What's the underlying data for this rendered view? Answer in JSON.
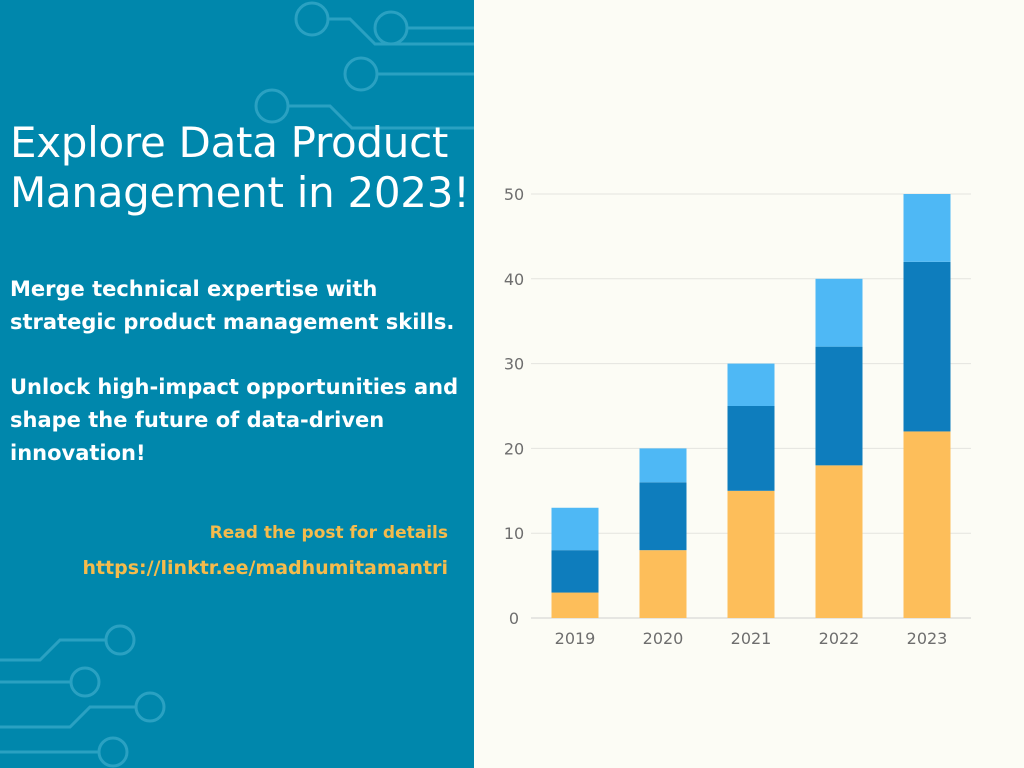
{
  "poster": {
    "headline_line1": "Explore Data Product",
    "headline_line2": "Management in 2023!",
    "para1_line1": "Merge technical expertise with",
    "para1_line2": "strategic product management skills.",
    "para2_line1": "Unlock high-impact opportunities and",
    "para2_line2": "shape the future of data-driven",
    "para2_line3": "innovation!",
    "cta": "Read the post for details",
    "link": "https://linktr.ee/madhumitamantri"
  },
  "colors": {
    "left_panel": "#0087ac",
    "right_panel": "#fcfcf5",
    "accent_text": "#f5bb4c",
    "circuit_lines": "#2aa1c2"
  },
  "chart_data": {
    "type": "bar",
    "stacked": true,
    "categories": [
      "2019",
      "2020",
      "2021",
      "2022",
      "2023"
    ],
    "series": [
      {
        "values": [
          3,
          8,
          15,
          18,
          22
        ],
        "color": "#fdbe5a"
      },
      {
        "values": [
          5,
          8,
          10,
          14,
          20
        ],
        "color": "#0e7dbd"
      },
      {
        "values": [
          5,
          4,
          5,
          8,
          8
        ],
        "color": "#4eb8f5"
      }
    ],
    "ylim": [
      0,
      50
    ],
    "yticks": [
      "0",
      "10",
      "20",
      "30",
      "40",
      "50"
    ],
    "grid": true,
    "title": "",
    "xlabel": "",
    "ylabel": ""
  }
}
